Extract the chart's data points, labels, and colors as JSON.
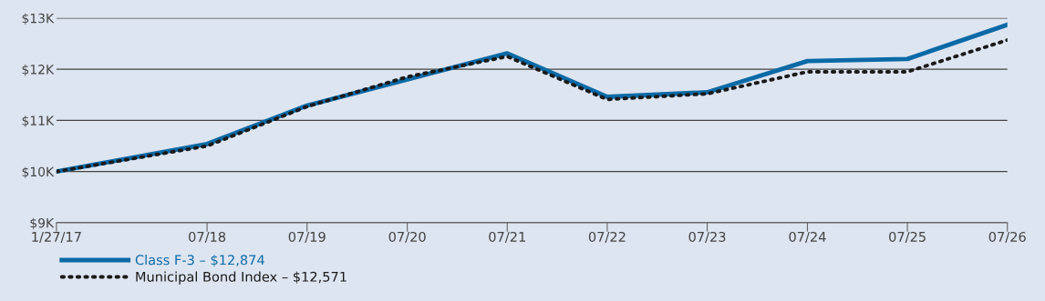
{
  "chart_data": {
    "type": "line",
    "x": [
      "2017-01-27",
      "2018-07-31",
      "2019-07-31",
      "2020-07-31",
      "2021-07-31",
      "2022-07-31",
      "2023-07-31",
      "2024-07-31",
      "2025-07-31",
      "2026-07-31"
    ],
    "series": [
      {
        "name": "Class F-3 – $12,874",
        "color": "#0b6aa6",
        "line_style": "solid",
        "values": [
          10000,
          10540,
          11290,
          11800,
          12310,
          11460,
          11550,
          12160,
          12200,
          12870
        ]
      },
      {
        "name": "Municipal Bond Index – $12,571",
        "color": "#1a1a1a",
        "line_style": "dotted",
        "values": [
          10000,
          10500,
          11270,
          11850,
          12250,
          11410,
          11520,
          11950,
          11950,
          12570
        ]
      }
    ],
    "ylim": [
      9000,
      13000
    ],
    "yticks": [
      {
        "value": 9000,
        "label": "$9K"
      },
      {
        "value": 10000,
        "label": "$10K"
      },
      {
        "value": 11000,
        "label": "$11K"
      },
      {
        "value": 12000,
        "label": "$12K"
      },
      {
        "value": 13000,
        "label": "$13K"
      }
    ],
    "xlim": [
      "2017-01-27",
      "2026-07-31"
    ],
    "xticks": [
      {
        "value": "2017-01-27",
        "label": "1/27/17"
      },
      {
        "value": "2018-07-31",
        "label": "07/18"
      },
      {
        "value": "2019-07-31",
        "label": "07/19"
      },
      {
        "value": "2020-07-31",
        "label": "07/20"
      },
      {
        "value": "2021-07-31",
        "label": "07/21"
      },
      {
        "value": "2022-07-31",
        "label": "07/22"
      },
      {
        "value": "2023-07-31",
        "label": "07/23"
      },
      {
        "value": "2024-07-31",
        "label": "07/24"
      },
      {
        "value": "2025-07-31",
        "label": "07/25"
      },
      {
        "value": "2026-07-31",
        "label": "07/26"
      }
    ],
    "grid": "y",
    "legend": "bottom left"
  }
}
